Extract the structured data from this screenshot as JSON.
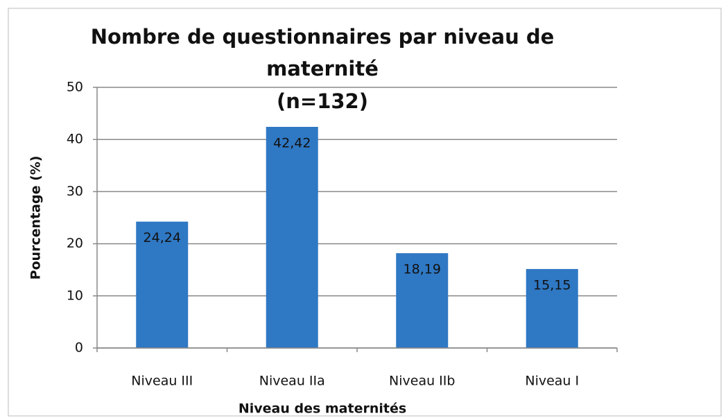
{
  "chart_data": {
    "type": "bar",
    "title": "Nombre de questionnaires par niveau de maternité",
    "subtitle": "(n=132)",
    "x_label": "Niveau des maternités",
    "y_label": "Pourcentage (%)",
    "categories": [
      "Niveau III",
      "Niveau IIa",
      "Niveau IIb",
      "Niveau I"
    ],
    "values": [
      24.24,
      42.42,
      18.19,
      15.15
    ],
    "value_labels": [
      "24,24",
      "42,42",
      "18,19",
      "15,15"
    ],
    "color": "#2f78c4",
    "ylim": [
      0,
      50
    ],
    "yticks": [
      0,
      10,
      20,
      30,
      40,
      50
    ],
    "grid": true
  }
}
